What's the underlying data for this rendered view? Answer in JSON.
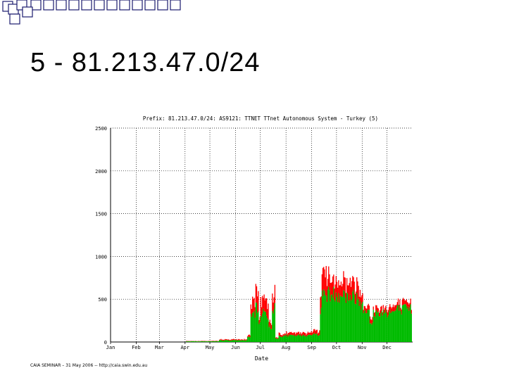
{
  "slide": {
    "title": "5 - 81.213.47.0/24",
    "footer": "CAIA SEMINAR – 31 May 2006 -- http://caia.swin.edu.au"
  },
  "colors": {
    "bullet_squares": "#1c1c6e",
    "red_series": "#ff0000",
    "green_series": "#00bb00"
  },
  "chart_data": {
    "type": "area",
    "title": "Prefix: 81.213.47.0/24: AS9121: TTNET TTnet Autonomous System - Turkey (5)",
    "xlabel": "Date",
    "ylabel": "",
    "ylim": [
      0,
      2500
    ],
    "yticks": [
      "0",
      "500",
      "1000",
      "1500",
      "2000",
      "2500"
    ],
    "xticks": [
      "Jan",
      "Feb",
      "Mar",
      "Apr",
      "May",
      "Jun",
      "Jul",
      "Aug",
      "Sep",
      "Oct",
      "Nov",
      "Dec"
    ],
    "grid": true,
    "stacked": true,
    "series": [
      {
        "name": "",
        "color": "#00bb00"
      },
      {
        "name": "",
        "color": "#ff0000"
      }
    ],
    "profile_note_days": [
      1,
      365
    ],
    "segments": [
      {
        "from_day": 1,
        "to_day": 92,
        "green": 0,
        "red": 0
      },
      {
        "from_day": 92,
        "to_day": 132,
        "green": 8,
        "red": 4
      },
      {
        "from_day": 132,
        "to_day": 166,
        "green": 20,
        "red": 10
      },
      {
        "from_day": 166,
        "to_day": 170,
        "green": 60,
        "red": 20
      },
      {
        "from_day": 170,
        "to_day": 172,
        "green": 280,
        "red": 80
      },
      {
        "from_day": 172,
        "to_day": 176,
        "green": 330,
        "red": 150
      },
      {
        "from_day": 176,
        "to_day": 180,
        "green": 390,
        "red": 170
      },
      {
        "from_day": 180,
        "to_day": 182,
        "green": 200,
        "red": 60
      },
      {
        "from_day": 182,
        "to_day": 190,
        "green": 350,
        "red": 180
      },
      {
        "from_day": 190,
        "to_day": 192,
        "green": 300,
        "red": 150
      },
      {
        "from_day": 192,
        "to_day": 196,
        "green": 170,
        "red": 50
      },
      {
        "from_day": 196,
        "to_day": 200,
        "green": 390,
        "red": 190
      },
      {
        "from_day": 200,
        "to_day": 204,
        "green": 40,
        "red": 15
      },
      {
        "from_day": 204,
        "to_day": 212,
        "green": 70,
        "red": 30
      },
      {
        "from_day": 212,
        "to_day": 240,
        "green": 75,
        "red": 30
      },
      {
        "from_day": 240,
        "to_day": 254,
        "green": 90,
        "red": 40
      },
      {
        "from_day": 254,
        "to_day": 256,
        "green": 350,
        "red": 150
      },
      {
        "from_day": 256,
        "to_day": 262,
        "green": 570,
        "red": 250
      },
      {
        "from_day": 262,
        "to_day": 270,
        "green": 560,
        "red": 200
      },
      {
        "from_day": 270,
        "to_day": 285,
        "green": 560,
        "red": 170
      },
      {
        "from_day": 285,
        "to_day": 300,
        "green": 530,
        "red": 160
      },
      {
        "from_day": 300,
        "to_day": 306,
        "green": 460,
        "red": 120
      },
      {
        "from_day": 306,
        "to_day": 314,
        "green": 390,
        "red": 60
      },
      {
        "from_day": 314,
        "to_day": 318,
        "green": 200,
        "red": 60
      },
      {
        "from_day": 318,
        "to_day": 330,
        "green": 340,
        "red": 60
      },
      {
        "from_day": 330,
        "to_day": 345,
        "green": 350,
        "red": 60
      },
      {
        "from_day": 345,
        "to_day": 365,
        "green": 380,
        "red": 60
      }
    ]
  }
}
